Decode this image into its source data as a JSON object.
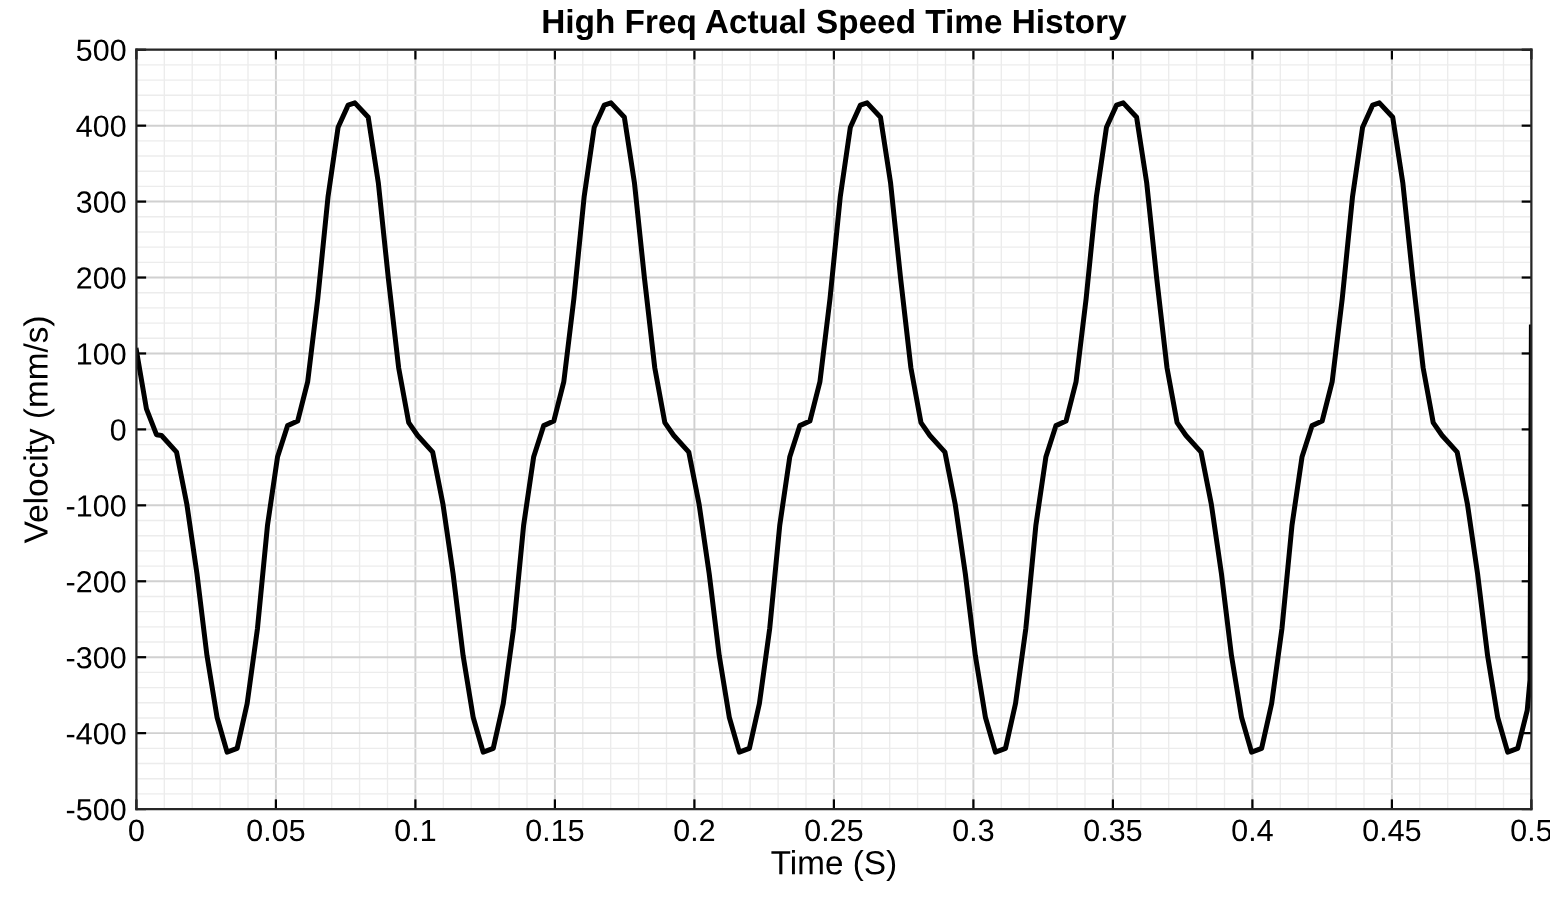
{
  "chart_data": {
    "type": "line",
    "title": "High Freq Actual Speed Time History",
    "xlabel": "Time (S)",
    "ylabel": "Velocity (mm/s)",
    "xlim": [
      0,
      0.5
    ],
    "ylim": [
      -500,
      500
    ],
    "xticks": [
      0,
      0.05,
      0.1,
      0.15,
      0.2,
      0.25,
      0.3,
      0.35,
      0.4,
      0.45,
      0.5
    ],
    "yticks": [
      -500,
      -400,
      -300,
      -200,
      -100,
      0,
      100,
      200,
      300,
      400,
      500
    ],
    "grid": true,
    "legend": false,
    "marker": "none",
    "line_style": "solid",
    "series": [
      {
        "color": "#000000",
        "x": [
          0,
          0.0036,
          0.0072,
          0.009,
          0.0144,
          0.0181,
          0.0217,
          0.0253,
          0.0289,
          0.0325,
          0.0361,
          0.0397,
          0.0434,
          0.047,
          0.0506,
          0.0542,
          0.0578,
          0.0614,
          0.065,
          0.0687,
          0.0723,
          0.0759,
          0.0783,
          0.0831,
          0.0867,
          0.0903,
          0.094,
          0.0976,
          0.1008,
          0.1062,
          0.1099,
          0.1135,
          0.1171,
          0.1207,
          0.1243,
          0.1279,
          0.1315,
          0.1352,
          0.1388,
          0.1424,
          0.146,
          0.1496,
          0.1532,
          0.1568,
          0.1605,
          0.1641,
          0.1677,
          0.1701,
          0.1749,
          0.1785,
          0.1821,
          0.1858,
          0.1894,
          0.1926,
          0.198,
          0.2017,
          0.2053,
          0.2089,
          0.2125,
          0.2161,
          0.2197,
          0.2233,
          0.227,
          0.2306,
          0.2342,
          0.2378,
          0.2414,
          0.245,
          0.2486,
          0.2523,
          0.2559,
          0.2595,
          0.2619,
          0.2667,
          0.2703,
          0.2739,
          0.2776,
          0.2812,
          0.2844,
          0.2898,
          0.2935,
          0.2971,
          0.3007,
          0.3043,
          0.3079,
          0.3115,
          0.3151,
          0.3188,
          0.3224,
          0.326,
          0.3296,
          0.3332,
          0.3368,
          0.3404,
          0.3441,
          0.3477,
          0.3513,
          0.3537,
          0.3585,
          0.3621,
          0.3657,
          0.3694,
          0.373,
          0.3762,
          0.3816,
          0.3853,
          0.3889,
          0.3925,
          0.3961,
          0.3997,
          0.4033,
          0.4069,
          0.4106,
          0.4142,
          0.4178,
          0.4214,
          0.425,
          0.4286,
          0.4322,
          0.4359,
          0.4395,
          0.4431,
          0.4455,
          0.4503,
          0.4539,
          0.4575,
          0.4612,
          0.4648,
          0.468,
          0.4734,
          0.4771,
          0.4807,
          0.4843,
          0.4879,
          0.4915,
          0.4951,
          0.4985,
          0.4995,
          0.5
        ],
        "values": [
          104,
          27,
          -7,
          -8,
          -30,
          -99,
          -190,
          -298,
          -379,
          -425,
          -420,
          -361,
          -262,
          -126,
          -36,
          5,
          11,
          63,
          172,
          307,
          398,
          427,
          430,
          411,
          325,
          199,
          81,
          9,
          -8,
          -30,
          -99,
          -190,
          -298,
          -379,
          -425,
          -420,
          -361,
          -262,
          -126,
          -36,
          5,
          11,
          63,
          172,
          307,
          398,
          427,
          430,
          411,
          325,
          199,
          81,
          9,
          -8,
          -30,
          -99,
          -190,
          -298,
          -379,
          -425,
          -420,
          -361,
          -262,
          -126,
          -36,
          5,
          11,
          63,
          172,
          307,
          398,
          427,
          430,
          411,
          325,
          199,
          81,
          9,
          -8,
          -30,
          -99,
          -190,
          -298,
          -379,
          -425,
          -420,
          -361,
          -262,
          -126,
          -36,
          5,
          11,
          63,
          172,
          307,
          398,
          427,
          430,
          411,
          325,
          199,
          81,
          9,
          -8,
          -30,
          -99,
          -190,
          -298,
          -379,
          -425,
          -420,
          -361,
          -262,
          -126,
          -36,
          5,
          11,
          63,
          172,
          307,
          398,
          427,
          430,
          411,
          325,
          199,
          81,
          9,
          -8,
          -30,
          -99,
          -190,
          -298,
          -379,
          -425,
          -420,
          -370,
          -330,
          135
        ]
      }
    ]
  }
}
